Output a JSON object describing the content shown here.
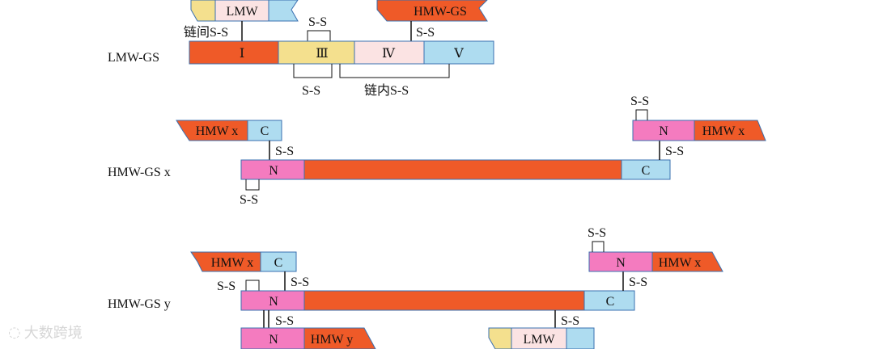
{
  "rows": {
    "lmw": {
      "label": "LMW-GS"
    },
    "hmwx": {
      "label": "HMW-GS x"
    },
    "hmwy": {
      "label": "HMW-GS y"
    }
  },
  "lmw_domains": {
    "d1": "Ⅰ",
    "d3": "Ⅲ",
    "d4": "Ⅳ",
    "d5": "Ⅴ"
  },
  "partners": {
    "lmw": "LMW",
    "hmwgs": "HMW-GS",
    "hmwx": "HMW x",
    "hmwy": "HMW y"
  },
  "domain_letters": {
    "n": "N",
    "c": "C"
  },
  "bonds": {
    "ss": "S-S",
    "inter": "链间S-S",
    "intra": "链内S-S"
  },
  "colors": {
    "orange": "#ef5a28",
    "pink": "#f47bbf",
    "lightblue": "#aedcf0",
    "yellow": "#f4e08e",
    "lightpink": "#fbe3e3",
    "border": "#3a70b0"
  },
  "watermark": {
    "text": "大数跨境"
  }
}
